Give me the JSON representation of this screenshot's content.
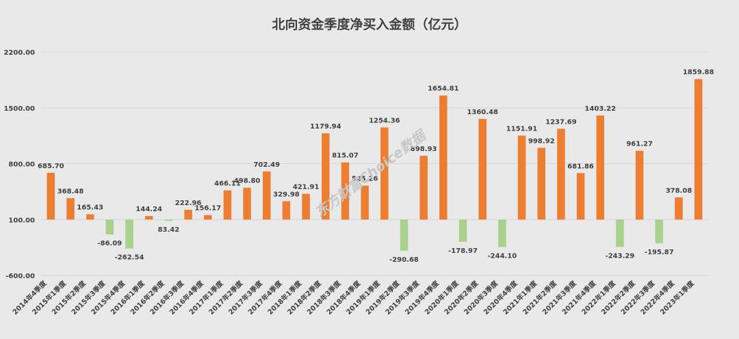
{
  "chart_data": {
    "type": "bar",
    "title": "北向资金季度净买入金额（亿元）",
    "xlabel": "",
    "ylabel": "",
    "ylim": [
      -600,
      2200
    ],
    "yticks": [
      "2200.00",
      "1500.00",
      "800.00",
      "100.00",
      "-600.00"
    ],
    "grid": true,
    "legend": "none",
    "categories": [
      "2014年4季度",
      "2015年1季度",
      "2015年2季度",
      "2015年3季度",
      "2015年4季度",
      "2016年1季度",
      "2016年2季度",
      "2016年3季度",
      "2016年4季度",
      "2017年1季度",
      "2017年2季度",
      "2017年3季度",
      "2017年4季度",
      "2018年1季度",
      "2018年2季度",
      "2018年3季度",
      "2018年4季度",
      "2019年1季度",
      "2019年2季度",
      "2019年3季度",
      "2019年4季度",
      "2020年1季度",
      "2020年2季度",
      "2020年3季度",
      "2020年4季度",
      "2021年1季度",
      "2021年2季度",
      "2021年3季度",
      "2021年4季度",
      "2022年1季度",
      "2022年2季度",
      "2022年3季度",
      "2022年4季度",
      "2023年1季度"
    ],
    "values": [
      685.7,
      368.48,
      165.43,
      -86.09,
      -262.54,
      144.24,
      83.42,
      222.96,
      156.17,
      466.11,
      498.8,
      702.49,
      329.98,
      421.91,
      1179.94,
      815.07,
      525.26,
      1254.36,
      -290.68,
      898.93,
      1654.81,
      -178.97,
      1360.48,
      -244.1,
      1151.91,
      998.92,
      1237.69,
      681.86,
      1403.22,
      -243.29,
      961.27,
      -195.87,
      378.08,
      1859.88
    ],
    "value_labels": [
      "685.70",
      "368.48",
      "165.43",
      "-86.09",
      "-262.54",
      "144.24",
      "83.42",
      "222.96",
      "156.17",
      "466.11",
      "498.80",
      "702.49",
      "329.98",
      "421.91",
      "1179.94",
      "815.07",
      "525.26",
      "1254.36",
      "-290.68",
      "898.93",
      "1654.81",
      "-178.97",
      "1360.48",
      "-244.10",
      "1151.91",
      "998.92",
      "1237.69",
      "681.86",
      "1403.22",
      "-243.29",
      "961.27",
      "-195.87",
      "378.08",
      "1859.88"
    ],
    "colors": {
      "positive": "#ed7d31",
      "negative": "#a9d18e",
      "grid": "#d6d6d6",
      "text": "#404040"
    }
  },
  "watermark": "东方财富Choice数据"
}
